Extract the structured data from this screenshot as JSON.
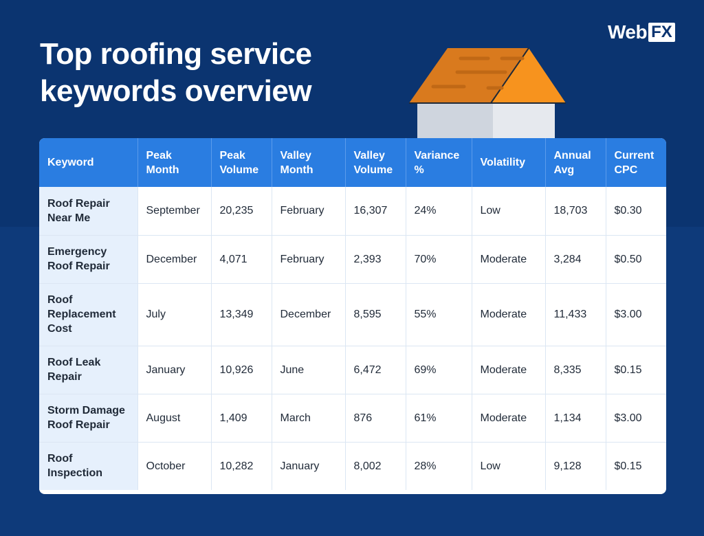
{
  "title": "Top roofing service\nkeywords overview",
  "logo": {
    "web": "Web",
    "fx": "FX"
  },
  "colors": {
    "background": "#0b3470",
    "header": "#2a7de1",
    "keyword_cell": "#e6f0fc",
    "roof_dark": "#d97a1e",
    "roof_light": "#f7931e",
    "wall_left": "#cfd5de",
    "wall_right": "#e6e9ee"
  },
  "icons": [
    "house-illustration"
  ],
  "chart_data": {
    "type": "table",
    "columns": [
      "Keyword",
      "Peak Month",
      "Peak Volume",
      "Valley Month",
      "Valley Volume",
      "Variance %",
      "Volatility",
      "Annual Avg",
      "Current CPC"
    ],
    "rows": [
      [
        "Roof Repair Near Me",
        "September",
        "20,235",
        "February",
        "16,307",
        "24%",
        "Low",
        "18,703",
        "$0.30"
      ],
      [
        "Emergency Roof Repair",
        "December",
        "4,071",
        "February",
        "2,393",
        "70%",
        "Moderate",
        "3,284",
        "$0.50"
      ],
      [
        "Roof Replacement Cost",
        "July",
        "13,349",
        "December",
        "8,595",
        "55%",
        "Moderate",
        "11,433",
        "$3.00"
      ],
      [
        "Roof Leak Repair",
        "January",
        "10,926",
        "June",
        "6,472",
        "69%",
        "Moderate",
        "8,335",
        "$0.15"
      ],
      [
        "Storm Damage Roof Repair",
        "August",
        "1,409",
        "March",
        "876",
        "61%",
        "Moderate",
        "1,134",
        "$3.00"
      ],
      [
        "Roof Inspection",
        "October",
        "10,282",
        "January",
        "8,002",
        "28%",
        "Low",
        "9,128",
        "$0.15"
      ]
    ]
  }
}
